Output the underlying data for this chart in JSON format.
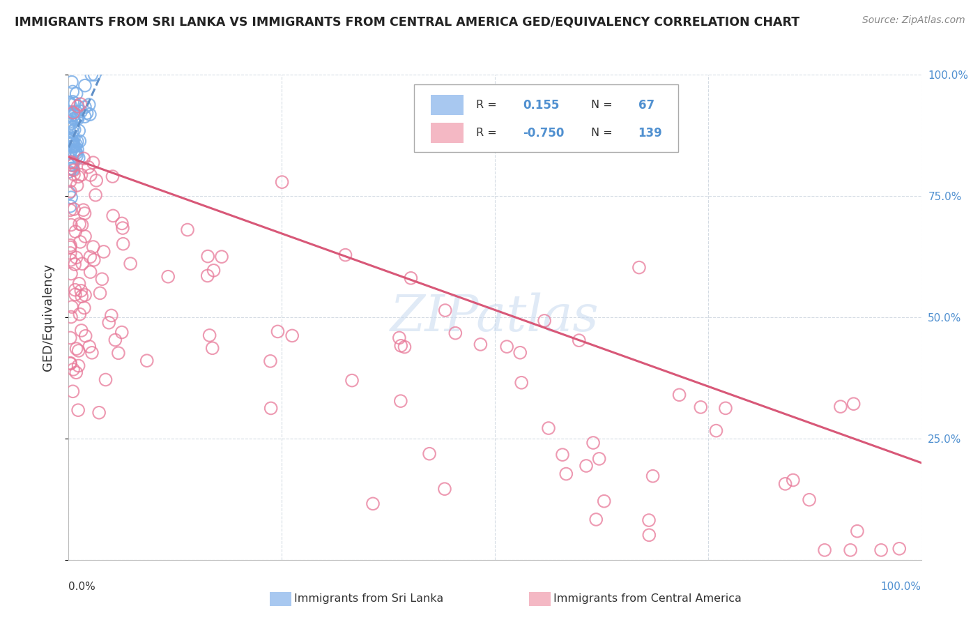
{
  "title": "IMMIGRANTS FROM SRI LANKA VS IMMIGRANTS FROM CENTRAL AMERICA GED/EQUIVALENCY CORRELATION CHART",
  "source": "Source: ZipAtlas.com",
  "ylabel": "GED/Equivalency",
  "blue_R": 0.155,
  "blue_N": 67,
  "pink_R": -0.75,
  "pink_N": 139,
  "blue_color": "#a8c8f0",
  "pink_color": "#f4b8c4",
  "blue_edge_color": "#7aaee8",
  "pink_edge_color": "#e87898",
  "blue_line_color": "#6090c8",
  "pink_line_color": "#d85878",
  "background_color": "#ffffff",
  "legend_label_blue": "Immigrants from Sri Lanka",
  "legend_label_pink": "Immigrants from Central America",
  "watermark_text": "ZIPatlas",
  "watermark_color": "#c8daf0",
  "grid_color": "#d0d8e0",
  "title_color": "#222222",
  "source_color": "#888888",
  "right_tick_color": "#5090d0",
  "axis_label_color": "#333333"
}
